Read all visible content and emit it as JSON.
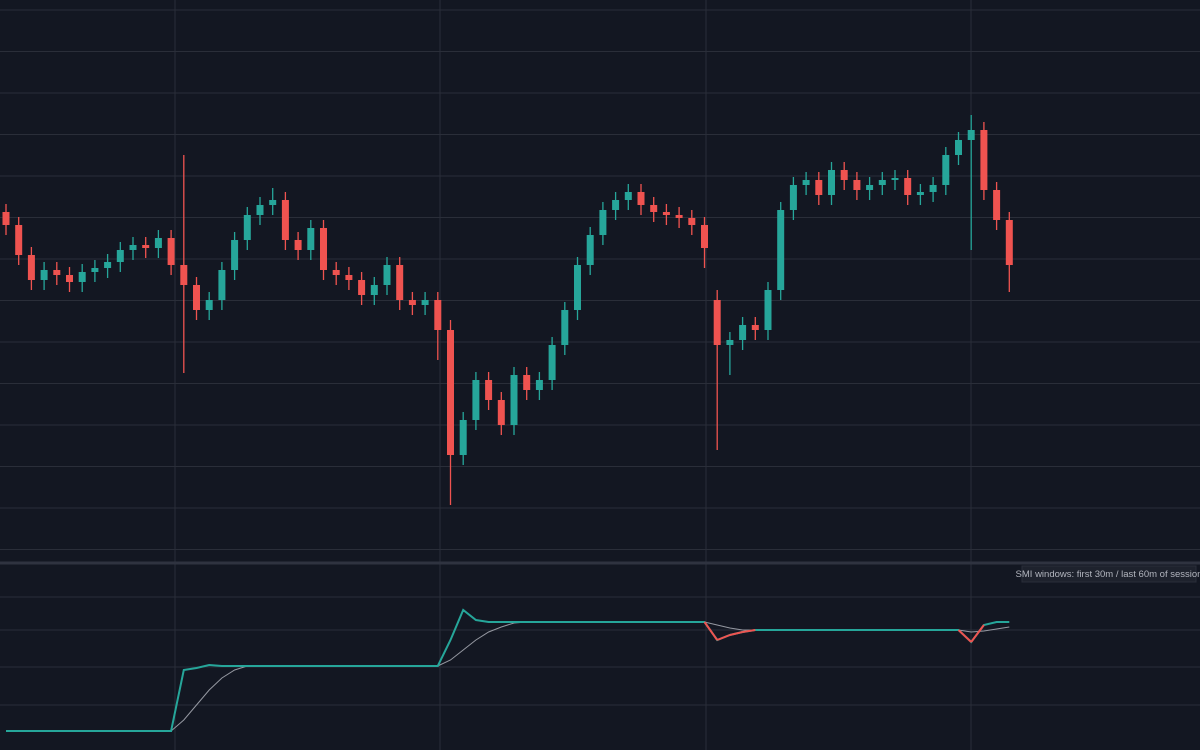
{
  "chart_data": [
    {
      "type": "candlestick",
      "open": [
        348,
        335,
        305,
        280,
        290,
        285,
        278,
        288,
        292,
        298,
        310,
        315,
        312,
        322,
        295,
        275,
        250,
        260,
        290,
        320,
        345,
        355,
        360,
        320,
        310,
        332,
        290,
        285,
        280,
        265,
        275,
        295,
        260,
        255,
        260,
        230,
        105,
        140,
        180,
        160,
        135,
        185,
        170,
        180,
        215,
        250,
        295,
        325,
        350,
        360,
        368,
        355,
        348,
        345,
        342,
        335,
        260,
        215,
        220,
        235,
        230,
        270,
        350,
        375,
        380,
        365,
        390,
        380,
        370,
        375,
        380,
        382,
        365,
        368,
        375,
        405,
        420,
        430,
        370,
        340
      ],
      "high": [
        356,
        343,
        313,
        298,
        298,
        293,
        296,
        300,
        306,
        318,
        323,
        323,
        330,
        330,
        405,
        283,
        268,
        298,
        328,
        353,
        363,
        372,
        368,
        328,
        340,
        340,
        298,
        293,
        288,
        283,
        303,
        303,
        268,
        268,
        268,
        240,
        148,
        188,
        188,
        168,
        193,
        193,
        188,
        223,
        258,
        303,
        333,
        358,
        368,
        376,
        376,
        363,
        356,
        353,
        350,
        343,
        270,
        228,
        243,
        243,
        278,
        358,
        383,
        388,
        388,
        398,
        398,
        388,
        383,
        388,
        390,
        390,
        376,
        383,
        413,
        428,
        445,
        438,
        378,
        348
      ],
      "low": [
        325,
        295,
        270,
        270,
        275,
        268,
        268,
        278,
        282,
        288,
        300,
        302,
        302,
        285,
        187,
        240,
        240,
        250,
        280,
        310,
        335,
        345,
        310,
        300,
        300,
        280,
        275,
        270,
        255,
        255,
        265,
        250,
        245,
        245,
        200,
        55,
        95,
        130,
        150,
        125,
        125,
        160,
        160,
        170,
        205,
        240,
        285,
        315,
        340,
        350,
        345,
        338,
        335,
        332,
        325,
        292,
        110,
        185,
        210,
        220,
        220,
        260,
        340,
        365,
        355,
        355,
        370,
        360,
        360,
        365,
        370,
        355,
        355,
        358,
        365,
        395,
        310,
        360,
        330,
        268
      ],
      "close": [
        335,
        305,
        280,
        290,
        285,
        278,
        288,
        292,
        298,
        310,
        315,
        312,
        322,
        295,
        275,
        250,
        260,
        290,
        320,
        345,
        355,
        360,
        320,
        310,
        332,
        290,
        285,
        280,
        265,
        275,
        295,
        260,
        255,
        260,
        230,
        105,
        140,
        180,
        160,
        135,
        185,
        170,
        180,
        215,
        250,
        295,
        325,
        350,
        360,
        368,
        355,
        348,
        345,
        342,
        335,
        312,
        215,
        220,
        235,
        230,
        270,
        350,
        375,
        380,
        365,
        390,
        380,
        370,
        375,
        380,
        382,
        365,
        368,
        375,
        405,
        420,
        430,
        370,
        340,
        295
      ],
      "up_color": "#26a69a",
      "down_color": "#ef5350",
      "ylim": [
        0,
        560
      ],
      "yticks": [
        10.5,
        52,
        93.5,
        135,
        176.5,
        218,
        259.5,
        301,
        342.5,
        384,
        425.5,
        467,
        508.5,
        550
      ],
      "grid": true
    },
    {
      "type": "line",
      "annotation": "SMI windows: first 30m / last 60m of session",
      "series": [
        {
          "color": "#26a69a",
          "down_color": "#ef5350",
          "values": [
            19,
            19,
            19,
            19,
            19,
            19,
            19,
            19,
            19,
            19,
            19,
            19,
            19,
            19,
            80,
            82,
            85,
            84,
            84,
            84,
            84,
            84,
            84,
            84,
            84,
            84,
            84,
            84,
            84,
            84,
            84,
            84,
            84,
            84,
            84,
            110,
            140,
            130,
            128,
            128,
            128,
            128,
            128,
            128,
            128,
            128,
            128,
            128,
            128,
            128,
            128,
            128,
            128,
            128,
            128,
            128,
            110,
            115,
            118,
            120,
            120,
            120,
            120,
            120,
            120,
            120,
            120,
            120,
            120,
            120,
            120,
            120,
            120,
            120,
            120,
            120,
            108,
            125,
            128,
            128
          ]
        },
        {
          "color": "#9598a1",
          "values": [
            19,
            19,
            19,
            19,
            19,
            19,
            19,
            19,
            19,
            19,
            19,
            19,
            19,
            19,
            30,
            45,
            60,
            72,
            80,
            84,
            84,
            84,
            84,
            84,
            84,
            84,
            84,
            84,
            84,
            84,
            84,
            84,
            84,
            84,
            84,
            90,
            100,
            110,
            118,
            123,
            127,
            128,
            128,
            128,
            128,
            128,
            128,
            128,
            128,
            128,
            128,
            128,
            128,
            128,
            128,
            128,
            125,
            122,
            120,
            120,
            120,
            120,
            120,
            120,
            120,
            120,
            120,
            120,
            120,
            120,
            120,
            120,
            120,
            120,
            120,
            120,
            118,
            119,
            121,
            123
          ]
        }
      ],
      "ylim": [
        0,
        185
      ],
      "yticks": [
        45,
        83,
        120,
        153
      ],
      "grid": true
    }
  ]
}
